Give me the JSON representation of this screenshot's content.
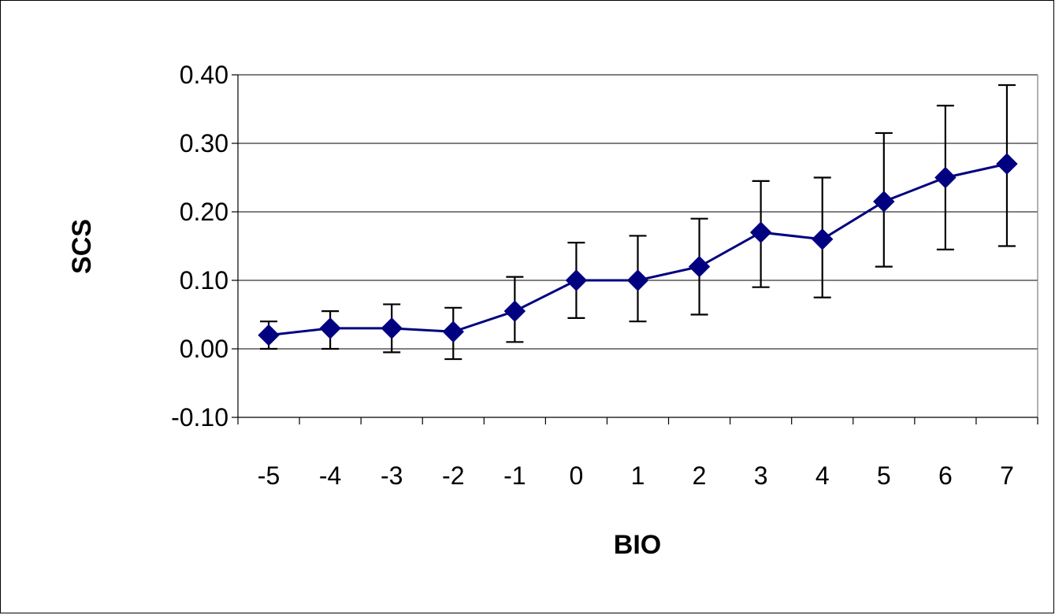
{
  "chart_data": {
    "type": "line",
    "title": "",
    "xlabel": "BIO",
    "ylabel": "SCS",
    "categories": [
      "-5",
      "-4",
      "-3",
      "-2",
      "-1",
      "0",
      "1",
      "2",
      "3",
      "4",
      "5",
      "6",
      "7"
    ],
    "series": [
      {
        "values": [
          0.02,
          0.03,
          0.03,
          0.025,
          0.055,
          0.1,
          0.1,
          0.12,
          0.17,
          0.16,
          0.215,
          0.25,
          0.27
        ],
        "err_low": [
          0.0,
          0.0,
          -0.005,
          -0.015,
          0.01,
          0.045,
          0.04,
          0.05,
          0.09,
          0.075,
          0.12,
          0.145,
          0.15
        ],
        "err_high": [
          0.04,
          0.055,
          0.065,
          0.06,
          0.105,
          0.155,
          0.165,
          0.19,
          0.245,
          0.25,
          0.315,
          0.355,
          0.385
        ],
        "color": "#000080"
      }
    ],
    "ylim": [
      -0.1,
      0.4
    ],
    "yticks": [
      "-0.10",
      "0.00",
      "0.10",
      "0.20",
      "0.30",
      "0.40"
    ],
    "ytick_values": [
      -0.1,
      0.0,
      0.1,
      0.2,
      0.3,
      0.4
    ],
    "grid": true,
    "legend": "none",
    "marker": "diamond"
  }
}
